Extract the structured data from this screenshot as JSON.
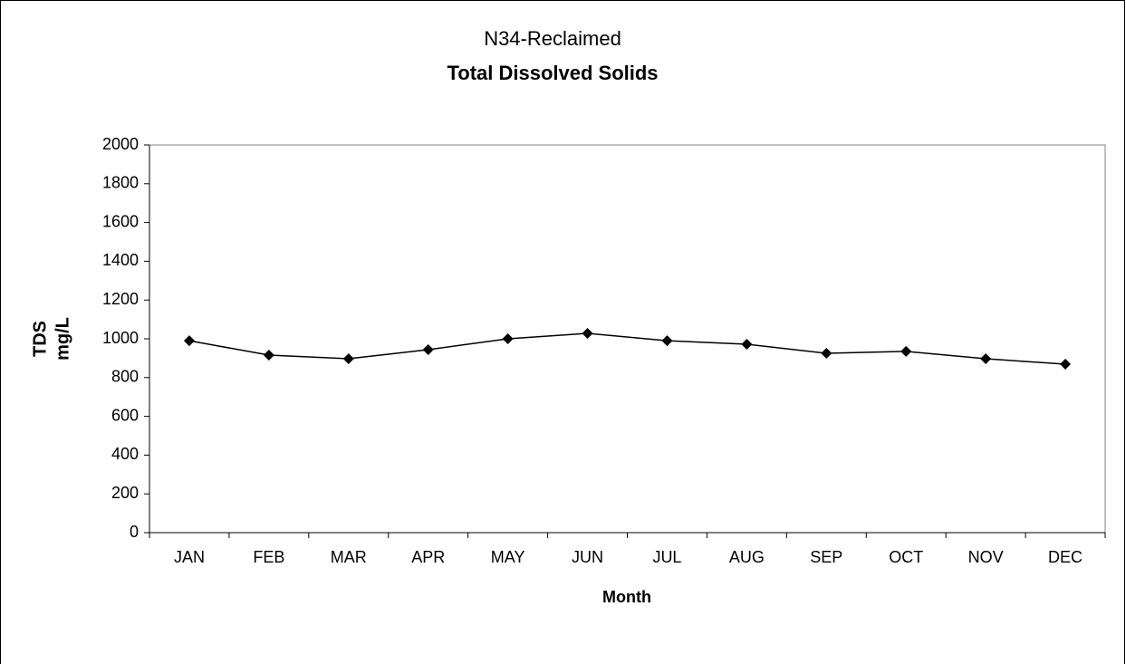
{
  "chart_data": {
    "type": "line",
    "title": "N34-Reclaimed",
    "subtitle": "Total Dissolved Solids",
    "y_label": [
      "TDS",
      "mg/L"
    ],
    "x_label": "Month",
    "categories": [
      "JAN",
      "FEB",
      "MAR",
      "APR",
      "MAY",
      "JUN",
      "JUL",
      "AUG",
      "SEP",
      "OCT",
      "NOV",
      "DEC"
    ],
    "values": [
      990,
      916,
      897,
      944,
      1000,
      1028,
      990,
      972,
      925,
      935,
      897,
      869
    ],
    "color": "#000000",
    "marker": "diamond",
    "ylim": [
      0,
      2000
    ],
    "yticks": [
      0,
      200,
      400,
      600,
      800,
      1000,
      1200,
      1400,
      1600,
      1800,
      2000
    ],
    "grid": false
  }
}
